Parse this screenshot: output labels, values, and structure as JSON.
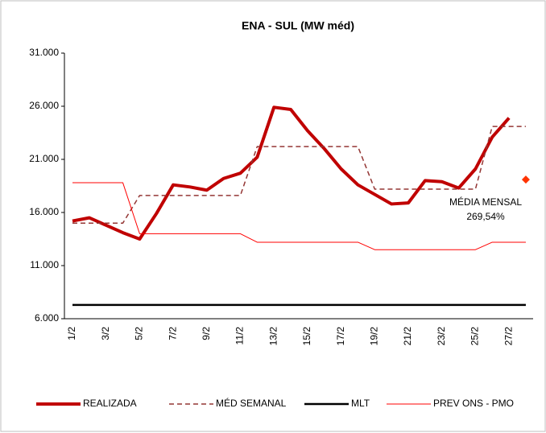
{
  "chart_data": {
    "type": "line",
    "title": "ENA - SUL (MW méd)",
    "categories": [
      "1/2",
      null,
      "3/2",
      null,
      "5/2",
      null,
      "7/2",
      null,
      "9/2",
      null,
      "11/2",
      null,
      "13/2",
      null,
      "15/2",
      null,
      "17/2",
      null,
      "19/2",
      null,
      "21/2",
      null,
      "23/2",
      null,
      "25/2",
      null,
      "27/2",
      null
    ],
    "ylim": [
      6000,
      31000
    ],
    "yticks": [
      {
        "value": 6000,
        "label": "6.000"
      },
      {
        "value": 11000,
        "label": "11.000"
      },
      {
        "value": 16000,
        "label": "16.000"
      },
      {
        "value": 21000,
        "label": "21.000"
      },
      {
        "value": 26000,
        "label": "26.000"
      },
      {
        "value": 31000,
        "label": "31.000"
      }
    ],
    "grid": false,
    "legend": "bottom",
    "series": [
      {
        "name": "REALIZADA",
        "color": "#c00000",
        "width": 4,
        "style": "solid",
        "values": [
          15200,
          15500,
          14800,
          14100,
          13500,
          15900,
          18600,
          18400,
          18100,
          19200,
          19700,
          21200,
          25900,
          25700,
          23700,
          22000,
          20100,
          18600,
          17700,
          16800,
          16900,
          19000,
          18900,
          18300,
          20100,
          23100,
          24900,
          null
        ]
      },
      {
        "name": "MÉD SEMANAL",
        "color": "#943634",
        "width": 1.5,
        "style": "dashed",
        "values": [
          15000,
          15000,
          15000,
          15000,
          17600,
          17600,
          17600,
          17600,
          17600,
          17600,
          17600,
          22200,
          22200,
          22200,
          22200,
          22200,
          22200,
          22200,
          18200,
          18200,
          18200,
          18200,
          18200,
          18200,
          18200,
          24100,
          24100,
          24100
        ]
      },
      {
        "name": "MLT",
        "color": "#000000",
        "width": 2.5,
        "style": "solid",
        "values": [
          7300,
          7300,
          7300,
          7300,
          7300,
          7300,
          7300,
          7300,
          7300,
          7300,
          7300,
          7300,
          7300,
          7300,
          7300,
          7300,
          7300,
          7300,
          7300,
          7300,
          7300,
          7300,
          7300,
          7300,
          7300,
          7300,
          7300,
          7300
        ]
      },
      {
        "name": "PREV ONS - PMO",
        "color": "#ff0000",
        "width": 1,
        "style": "solid",
        "values": [
          18800,
          18800,
          18800,
          18800,
          14000,
          14000,
          14000,
          14000,
          14000,
          14000,
          14000,
          13200,
          13200,
          13200,
          13200,
          13200,
          13200,
          13200,
          12500,
          12500,
          12500,
          12500,
          12500,
          12500,
          12500,
          13200,
          13200,
          13200
        ]
      }
    ],
    "annotation": {
      "lines": [
        "MÉDIA MENSAL",
        "269,54%"
      ],
      "category": 27,
      "value": 19100,
      "color": "#ff3300"
    }
  }
}
